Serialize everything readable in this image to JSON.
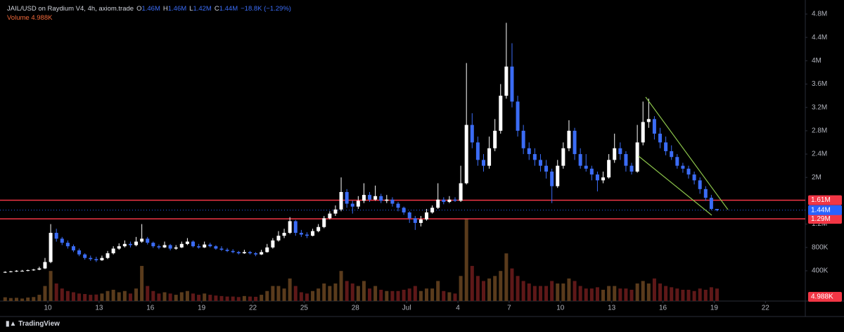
{
  "chart_data": {
    "type": "candlestick",
    "symbol": "JAIL/USD on Raydium V4, 4h, axiom.trade",
    "ohlc_legend": [
      {
        "key": "O",
        "text": "1.46M"
      },
      {
        "key": "H",
        "text": "1.46M"
      },
      {
        "key": "L",
        "text": "1.42M"
      },
      {
        "key": "C",
        "text": "1.44M"
      }
    ],
    "change": "−18.8K (−1.29%)",
    "up_color": "#ffffff",
    "down_color": "#3b6cf5",
    "candles": [
      [
        370000,
        392000,
        362000,
        380000
      ],
      [
        380000,
        398000,
        372000,
        390000
      ],
      [
        390000,
        410000,
        380000,
        400000
      ],
      [
        400000,
        415000,
        385000,
        400000
      ],
      [
        400000,
        420000,
        392000,
        410000
      ],
      [
        410000,
        432000,
        400000,
        420000
      ],
      [
        420000,
        470000,
        410000,
        440000
      ],
      [
        440000,
        620000,
        430000,
        550000
      ],
      [
        550000,
        1200000,
        530000,
        1050000
      ],
      [
        1050000,
        1120000,
        900000,
        950000
      ],
      [
        950000,
        980000,
        840000,
        880000
      ],
      [
        880000,
        920000,
        780000,
        820000
      ],
      [
        820000,
        850000,
        720000,
        750000
      ],
      [
        750000,
        780000,
        650000,
        680000
      ],
      [
        680000,
        700000,
        590000,
        620000
      ],
      [
        620000,
        660000,
        570000,
        600000
      ],
      [
        600000,
        640000,
        550000,
        580000
      ],
      [
        580000,
        660000,
        570000,
        620000
      ],
      [
        620000,
        740000,
        600000,
        700000
      ],
      [
        700000,
        820000,
        680000,
        780000
      ],
      [
        780000,
        870000,
        760000,
        820000
      ],
      [
        820000,
        920000,
        800000,
        860000
      ],
      [
        860000,
        900000,
        800000,
        840000
      ],
      [
        840000,
        980000,
        820000,
        900000
      ],
      [
        900000,
        1200000,
        880000,
        950000
      ],
      [
        950000,
        980000,
        850000,
        880000
      ],
      [
        880000,
        900000,
        790000,
        820000
      ],
      [
        820000,
        850000,
        770000,
        800000
      ],
      [
        800000,
        900000,
        790000,
        840000
      ],
      [
        840000,
        860000,
        750000,
        780000
      ],
      [
        780000,
        840000,
        760000,
        800000
      ],
      [
        800000,
        900000,
        790000,
        860000
      ],
      [
        860000,
        960000,
        840000,
        900000
      ],
      [
        900000,
        920000,
        800000,
        820000
      ],
      [
        820000,
        860000,
        780000,
        800000
      ],
      [
        800000,
        900000,
        790000,
        850000
      ],
      [
        850000,
        880000,
        800000,
        820000
      ],
      [
        820000,
        840000,
        760000,
        780000
      ],
      [
        780000,
        820000,
        740000,
        760000
      ],
      [
        760000,
        790000,
        720000,
        740000
      ],
      [
        740000,
        770000,
        700000,
        720000
      ],
      [
        720000,
        740000,
        680000,
        700000
      ],
      [
        700000,
        760000,
        690000,
        720000
      ],
      [
        720000,
        740000,
        680000,
        700000
      ],
      [
        700000,
        720000,
        650000,
        680000
      ],
      [
        680000,
        760000,
        670000,
        720000
      ],
      [
        720000,
        860000,
        710000,
        800000
      ],
      [
        800000,
        960000,
        780000,
        920000
      ],
      [
        920000,
        1080000,
        900000,
        1000000
      ],
      [
        1000000,
        1120000,
        960000,
        1050000
      ],
      [
        1050000,
        1320000,
        1030000,
        1250000
      ],
      [
        1250000,
        1270000,
        1000000,
        1050000
      ],
      [
        1050000,
        1100000,
        980000,
        1020000
      ],
      [
        1020000,
        1060000,
        960000,
        1000000
      ],
      [
        1000000,
        1120000,
        990000,
        1080000
      ],
      [
        1080000,
        1200000,
        1060000,
        1150000
      ],
      [
        1150000,
        1340000,
        1130000,
        1300000
      ],
      [
        1300000,
        1420000,
        1280000,
        1380000
      ],
      [
        1380000,
        1520000,
        1340000,
        1450000
      ],
      [
        1450000,
        2000000,
        1420000,
        1750000
      ],
      [
        1750000,
        1800000,
        1480000,
        1550000
      ],
      [
        1550000,
        1600000,
        1380000,
        1500000
      ],
      [
        1500000,
        1680000,
        1460000,
        1600000
      ],
      [
        1600000,
        1900000,
        1560000,
        1700000
      ],
      [
        1700000,
        1750000,
        1580000,
        1620000
      ],
      [
        1620000,
        1860000,
        1600000,
        1680000
      ],
      [
        1680000,
        1720000,
        1560000,
        1600000
      ],
      [
        1600000,
        1700000,
        1560000,
        1620000
      ],
      [
        1620000,
        1660000,
        1500000,
        1550000
      ],
      [
        1550000,
        1580000,
        1420000,
        1480000
      ],
      [
        1480000,
        1500000,
        1360000,
        1400000
      ],
      [
        1400000,
        1420000,
        1220000,
        1300000
      ],
      [
        1300000,
        1340000,
        1100000,
        1220000
      ],
      [
        1220000,
        1340000,
        1160000,
        1280000
      ],
      [
        1280000,
        1460000,
        1260000,
        1400000
      ],
      [
        1400000,
        1520000,
        1380000,
        1480000
      ],
      [
        1480000,
        1900000,
        1460000,
        1620000
      ],
      [
        1620000,
        1660000,
        1540000,
        1580000
      ],
      [
        1580000,
        1680000,
        1560000,
        1620000
      ],
      [
        1620000,
        1660000,
        1580000,
        1600000
      ],
      [
        1600000,
        2200000,
        1580000,
        1900000
      ],
      [
        1900000,
        3960000,
        1880000,
        2900000
      ],
      [
        2900000,
        3100000,
        2500000,
        2600000
      ],
      [
        2600000,
        2700000,
        2200000,
        2300000
      ],
      [
        2300000,
        2400000,
        2100000,
        2200000
      ],
      [
        2200000,
        2700000,
        2150000,
        2500000
      ],
      [
        2500000,
        3000000,
        2450000,
        2800000
      ],
      [
        2800000,
        3600000,
        2750000,
        3400000
      ],
      [
        3400000,
        4650000,
        3350000,
        3900000
      ],
      [
        3900000,
        4300000,
        3200000,
        3300000
      ],
      [
        3300000,
        3400000,
        2700000,
        2800000
      ],
      [
        2800000,
        2900000,
        2400000,
        2500000
      ],
      [
        2500000,
        2600000,
        2300000,
        2400000
      ],
      [
        2400000,
        2500000,
        2200000,
        2300000
      ],
      [
        2300000,
        2400000,
        2100000,
        2200000
      ],
      [
        2200000,
        2300000,
        1980000,
        2100000
      ],
      [
        2100000,
        2150000,
        1560000,
        1850000
      ],
      [
        1850000,
        2300000,
        1820000,
        2200000
      ],
      [
        2200000,
        2600000,
        2150000,
        2500000
      ],
      [
        2500000,
        2980000,
        2450000,
        2800000
      ],
      [
        2800000,
        2850000,
        2300000,
        2400000
      ],
      [
        2400000,
        2500000,
        2150000,
        2200000
      ],
      [
        2200000,
        2400000,
        2100000,
        2150000
      ],
      [
        2150000,
        2200000,
        1950000,
        2050000
      ],
      [
        2050000,
        2100000,
        1760000,
        1950000
      ],
      [
        1950000,
        2100000,
        1900000,
        2000000
      ],
      [
        2000000,
        2400000,
        1980000,
        2300000
      ],
      [
        2300000,
        2750000,
        2250000,
        2500000
      ],
      [
        2500000,
        2600000,
        2300000,
        2400000
      ],
      [
        2400000,
        2450000,
        2100000,
        2200000
      ],
      [
        2200000,
        2250000,
        2050000,
        2100000
      ],
      [
        2100000,
        2900000,
        2080000,
        2600000
      ],
      [
        2600000,
        3300000,
        2550000,
        2950000
      ],
      [
        2950000,
        3350000,
        2850000,
        3000000
      ],
      [
        3000000,
        3050000,
        2650000,
        2750000
      ],
      [
        2750000,
        2850000,
        2500000,
        2600000
      ],
      [
        2600000,
        2700000,
        2380000,
        2450000
      ],
      [
        2450000,
        2550000,
        2300000,
        2350000
      ],
      [
        2350000,
        2400000,
        2150000,
        2200000
      ],
      [
        2200000,
        2250000,
        2080000,
        2150000
      ],
      [
        2150000,
        2200000,
        1980000,
        2050000
      ],
      [
        2050000,
        2100000,
        1880000,
        1950000
      ],
      [
        1950000,
        2000000,
        1720000,
        1800000
      ],
      [
        1800000,
        1850000,
        1600000,
        1650000
      ],
      [
        1650000,
        1700000,
        1440000,
        1460000
      ],
      [
        1460000,
        1460000,
        1420000,
        1440000
      ]
    ],
    "volume": {
      "name": "Volume",
      "up_color": "#5a3b1c",
      "down_color": "#5e1818",
      "last_label": "4.988K",
      "lim": [
        0,
        120000
      ],
      "values": [
        1500,
        1200,
        1300,
        1000,
        1400,
        1600,
        2500,
        6000,
        12000,
        7000,
        5000,
        4000,
        3500,
        3000,
        2800,
        2500,
        2600,
        3000,
        4000,
        4500,
        3500,
        4000,
        3000,
        5000,
        14000,
        6000,
        4000,
        3000,
        3500,
        3000,
        2500,
        3500,
        4000,
        3000,
        2500,
        3000,
        2500,
        2200,
        2000,
        1800,
        1800,
        1600,
        2000,
        1800,
        1700,
        2500,
        4000,
        6000,
        6000,
        5000,
        9000,
        6000,
        3500,
        3000,
        4000,
        5000,
        7000,
        6000,
        7000,
        12000,
        8000,
        7000,
        6000,
        8000,
        5000,
        6000,
        4500,
        4000,
        4000,
        4000,
        4500,
        5000,
        6000,
        4000,
        5000,
        5000,
        8000,
        4000,
        3500,
        3000,
        10000,
        33000,
        14000,
        10000,
        8000,
        9000,
        10000,
        12000,
        19000,
        13000,
        10000,
        8000,
        7000,
        6000,
        6000,
        6000,
        8000,
        7000,
        7000,
        9000,
        8000,
        6000,
        5000,
        5000,
        5500,
        4500,
        6000,
        6000,
        5000,
        5000,
        4500,
        7000,
        8000,
        7000,
        9000,
        7000,
        6000,
        5500,
        5000,
        4500,
        4500,
        4000,
        5000,
        4500,
        5500,
        4988
      ]
    },
    "levels": [
      {
        "value": 1610000,
        "label": "1.61M",
        "color": "#f23645"
      },
      {
        "value": 1290000,
        "label": "1.29M",
        "color": "#f23645"
      }
    ],
    "last_price": {
      "value": 1440000,
      "label": "1.44M",
      "color": "#2962ff"
    },
    "xlim": [
      -0.9,
      140.5
    ],
    "xticks": [
      {
        "value": 7.5,
        "label": "10"
      },
      {
        "value": 16.5,
        "label": "13"
      },
      {
        "value": 25.5,
        "label": "16"
      },
      {
        "value": 34.5,
        "label": "19"
      },
      {
        "value": 43.5,
        "label": "22"
      },
      {
        "value": 52.5,
        "label": "25"
      },
      {
        "value": 61.5,
        "label": "28"
      },
      {
        "value": 70.5,
        "label": "Jul"
      },
      {
        "value": 79.5,
        "label": "4"
      },
      {
        "value": 88.5,
        "label": "7"
      },
      {
        "value": 97.5,
        "label": "10"
      },
      {
        "value": 106.5,
        "label": "13"
      },
      {
        "value": 115.5,
        "label": "16"
      },
      {
        "value": 124.5,
        "label": "19"
      },
      {
        "value": 133.5,
        "label": "22"
      }
    ],
    "ylim": [
      -119000,
      5041000
    ],
    "yticks": [
      {
        "value": 400000,
        "label": "400K"
      },
      {
        "value": 800000,
        "label": "800K"
      },
      {
        "value": 1200000,
        "label": "1.2M"
      },
      {
        "value": 2000000,
        "label": "2M"
      },
      {
        "value": 2400000,
        "label": "2.4M"
      },
      {
        "value": 2800000,
        "label": "2.8M"
      },
      {
        "value": 3200000,
        "label": "3.2M"
      },
      {
        "value": 3600000,
        "label": "3.6M"
      },
      {
        "value": 4000000,
        "label": "4M"
      },
      {
        "value": 4400000,
        "label": "4.4M"
      },
      {
        "value": 4800000,
        "label": "4.8M"
      }
    ],
    "grid": false,
    "brand": "TradingView"
  }
}
